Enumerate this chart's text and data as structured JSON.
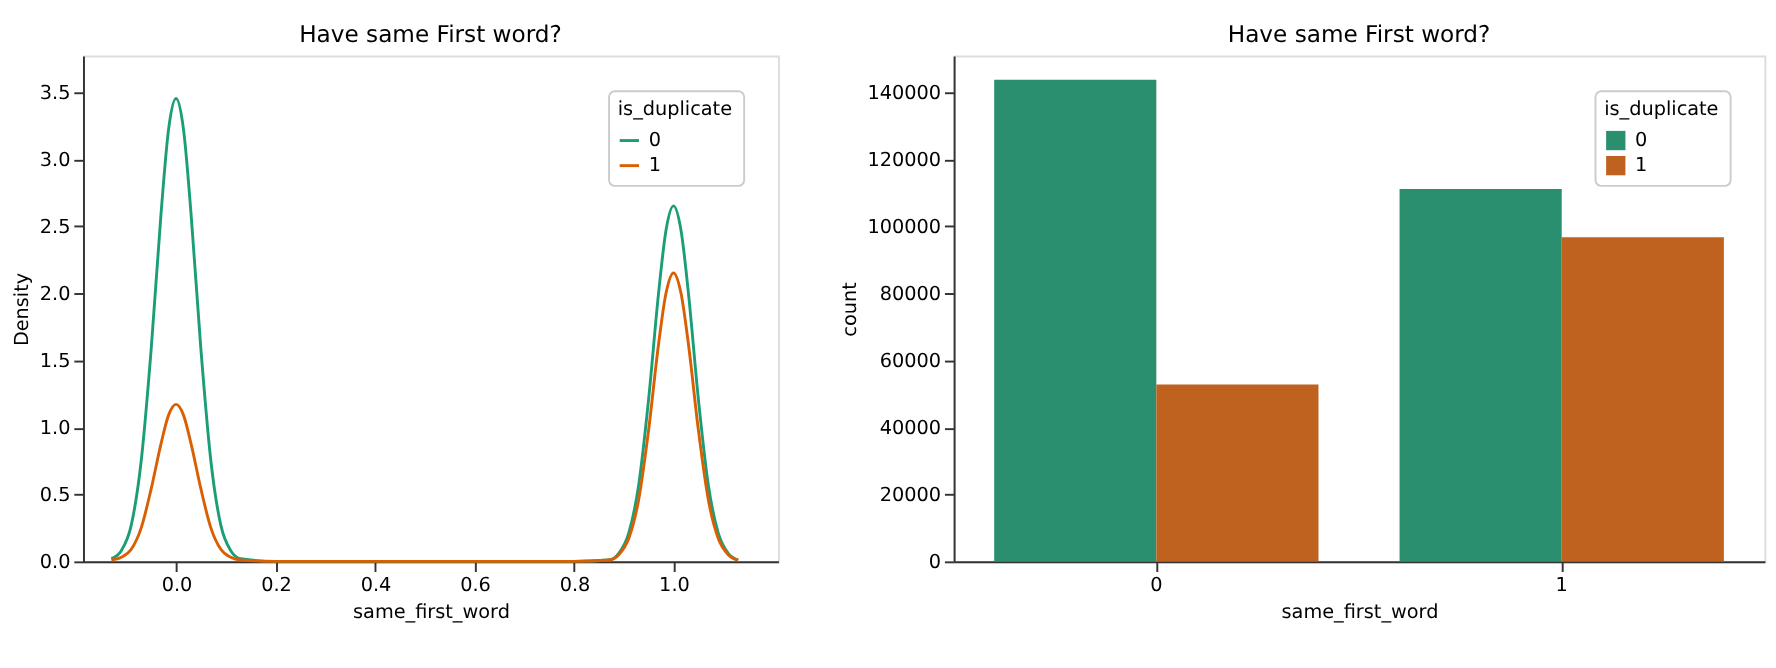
{
  "chart_data": [
    {
      "type": "line",
      "title": "Have same First word?",
      "xlabel": "same_first_word",
      "ylabel": "Density",
      "legend_title": "is_duplicate",
      "legend": "top right",
      "grid": false,
      "x": [
        -0.13,
        -0.11,
        -0.09,
        -0.07,
        -0.05,
        -0.03,
        -0.015,
        0,
        0.015,
        0.03,
        0.05,
        0.07,
        0.09,
        0.11,
        0.13,
        0.2,
        0.5,
        0.8,
        0.87,
        0.89,
        0.91,
        0.93,
        0.95,
        0.97,
        0.985,
        1,
        1.015,
        1.03,
        1.05,
        1.07,
        1.09,
        1.11,
        1.13
      ],
      "xlim": [
        -0.187,
        1.21
      ],
      "xticks": [
        {
          "value": 0,
          "label": "0.0"
        },
        {
          "value": 0.2,
          "label": "0.2"
        },
        {
          "value": 0.4,
          "label": "0.4"
        },
        {
          "value": 0.6,
          "label": "0.6"
        },
        {
          "value": 0.8,
          "label": "0.8"
        },
        {
          "value": 1,
          "label": "1.0"
        }
      ],
      "ylim": [
        0,
        3.77
      ],
      "yticks": [
        {
          "value": 0,
          "label": "0.0"
        },
        {
          "value": 0.5,
          "label": "0.5"
        },
        {
          "value": 1,
          "label": "1.0"
        },
        {
          "value": 1.5,
          "label": "1.5"
        },
        {
          "value": 2,
          "label": "2.0"
        },
        {
          "value": 2.5,
          "label": "2.5"
        },
        {
          "value": 3,
          "label": "3.0"
        },
        {
          "value": 3.5,
          "label": "3.5"
        }
      ],
      "series": [
        {
          "name": "0",
          "color": "#1b9e77",
          "values": [
            0.02,
            0.08,
            0.27,
            0.75,
            1.58,
            2.6,
            3.22,
            3.45,
            3.22,
            2.6,
            1.58,
            0.75,
            0.27,
            0.08,
            0.02,
            0,
            0,
            0,
            0.01,
            0.06,
            0.21,
            0.57,
            1.21,
            2.0,
            2.47,
            2.65,
            2.47,
            2.0,
            1.21,
            0.57,
            0.21,
            0.06,
            0.01
          ]
        },
        {
          "name": "1",
          "color": "#d95f02",
          "values": [
            0.01,
            0.03,
            0.09,
            0.25,
            0.54,
            0.88,
            1.09,
            1.17,
            1.09,
            0.88,
            0.54,
            0.25,
            0.09,
            0.03,
            0.01,
            0,
            0,
            0,
            0.01,
            0.05,
            0.17,
            0.46,
            0.98,
            1.62,
            2.0,
            2.15,
            2.0,
            1.62,
            0.98,
            0.46,
            0.17,
            0.05,
            0.01
          ]
        }
      ]
    },
    {
      "type": "bar",
      "title": "Have same First word?",
      "xlabel": "same_first_word",
      "ylabel": "count",
      "legend_title": "is_duplicate",
      "legend": "top right",
      "grid": false,
      "categories": [
        "0",
        "1"
      ],
      "ylim": [
        0,
        151000
      ],
      "yticks": [
        0,
        20000,
        40000,
        60000,
        80000,
        100000,
        120000,
        140000
      ],
      "series": [
        {
          "name": "0",
          "color": "#2a8f6f",
          "values": [
            143800,
            111200
          ]
        },
        {
          "name": "1",
          "color": "#bf611f",
          "values": [
            52800,
            96800
          ]
        }
      ]
    }
  ]
}
